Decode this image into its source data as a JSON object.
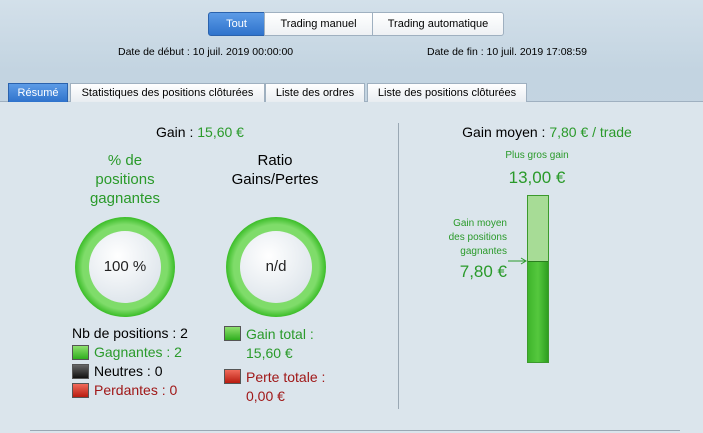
{
  "filters": [
    "Tout",
    "Trading manuel",
    "Trading automatique"
  ],
  "dates": {
    "start_label": "Date de début :",
    "start": "10 juil. 2019 00:00:00",
    "end_label": "Date de fin :",
    "end": "10 juil. 2019 17:08:59"
  },
  "tabs": [
    "Résumé",
    "Statistiques des positions clôturées",
    "Liste des ordres",
    "Liste des positions clôturées"
  ],
  "gain": {
    "label": "Gain :",
    "value": "15,60 €"
  },
  "win_rate": {
    "title": [
      "% de",
      "positions",
      "gagnantes"
    ],
    "value": "100 %"
  },
  "ratio": {
    "title": [
      "Ratio",
      "Gains/Pertes"
    ],
    "value": "n/d"
  },
  "positions": {
    "total": "Nb de positions : 2",
    "winners": "Gagnantes : 2",
    "neutral": "Neutres : 0",
    "losers": "Perdantes : 0"
  },
  "totals": {
    "gain_label": "Gain total :",
    "gain": "15,60 €",
    "loss_label": "Perte totale :",
    "loss": "0,00 €"
  },
  "average": {
    "label": "Gain moyen :",
    "value": "7,80 € / trade",
    "max_label": "Plus gros gain",
    "max": "13,00 €",
    "winners_label": [
      "Gain moyen",
      "des positions",
      "gagnantes"
    ],
    "winners": "7,80 €"
  }
}
